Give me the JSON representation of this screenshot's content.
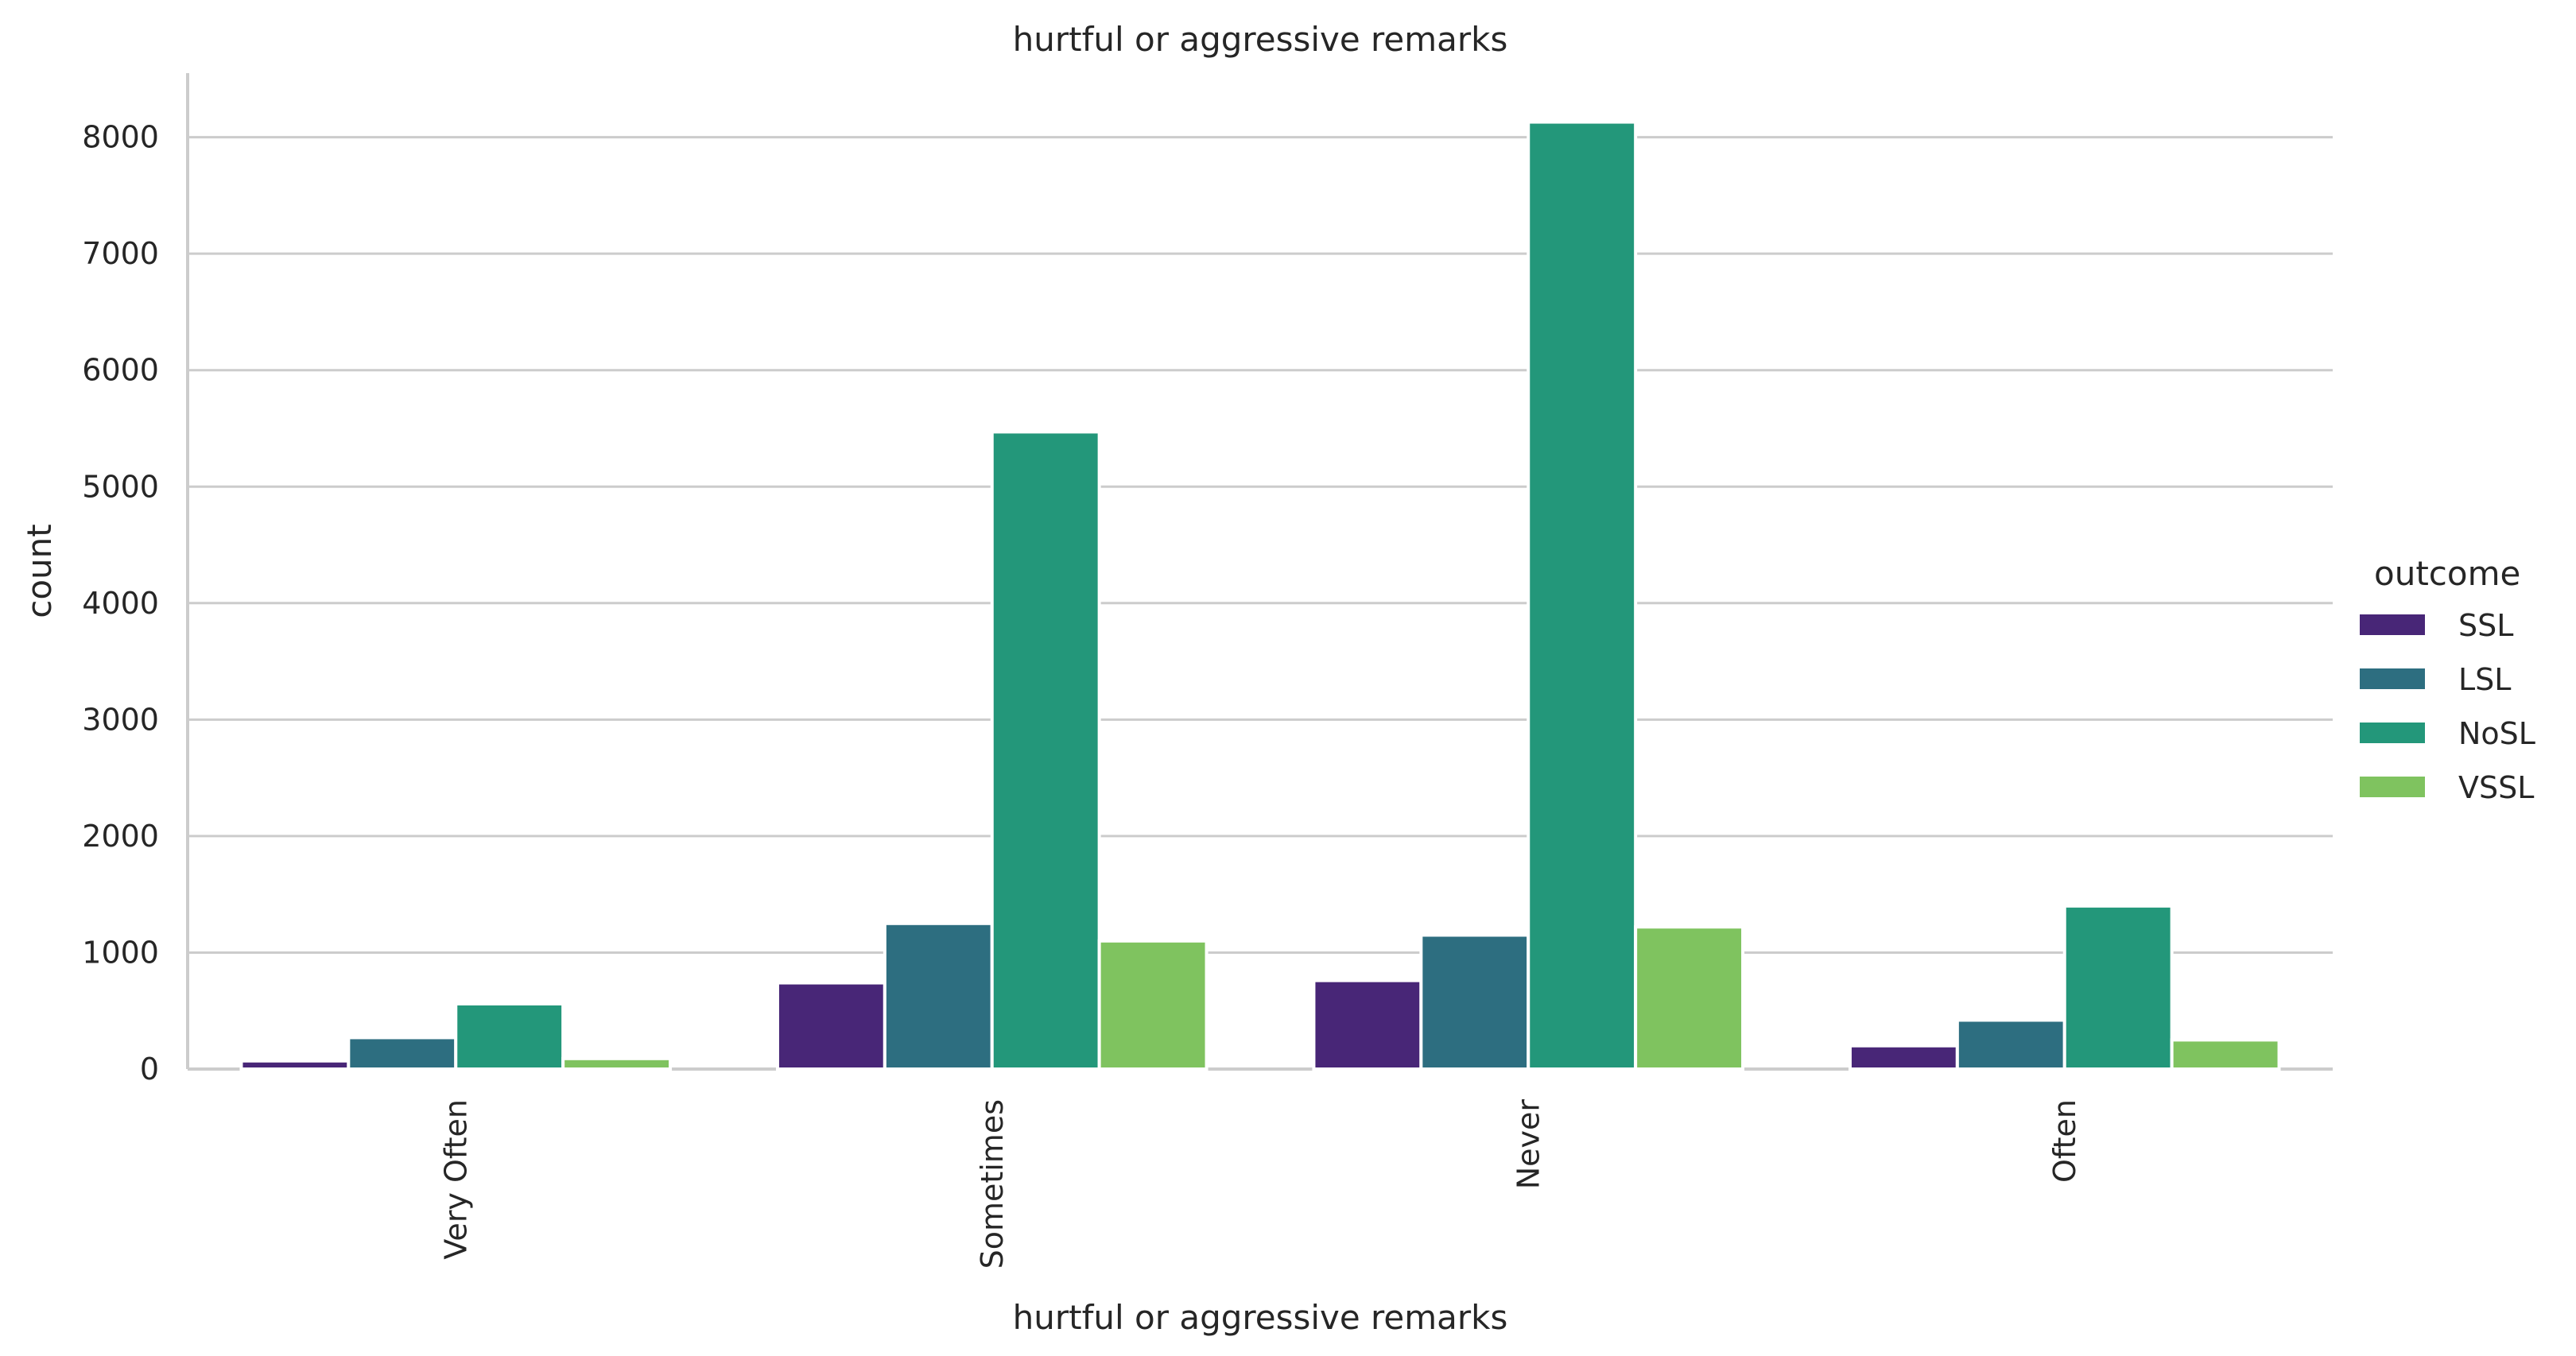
{
  "chart_data": {
    "type": "bar",
    "title": "hurtful or aggressive remarks",
    "xlabel": "hurtful or aggressive remarks",
    "ylabel": "count",
    "categories": [
      "Very Often",
      "Sometimes",
      "Never",
      "Often"
    ],
    "series": [
      {
        "name": "SSL",
        "color": "#482677",
        "values": [
          70,
          740,
          760,
          200
        ]
      },
      {
        "name": "LSL",
        "color": "#2d6e80",
        "values": [
          270,
          1250,
          1150,
          420
        ]
      },
      {
        "name": "NoSL",
        "color": "#23977a",
        "values": [
          560,
          5470,
          8130,
          1400
        ]
      },
      {
        "name": "VSSL",
        "color": "#7fc35f",
        "values": [
          90,
          1100,
          1220,
          250
        ]
      }
    ],
    "ylim": [
      0,
      8550
    ],
    "yticks": [
      0,
      1000,
      2000,
      3000,
      4000,
      5000,
      6000,
      7000,
      8000
    ],
    "grid": true,
    "legend": {
      "title": "outcome",
      "placement": "right"
    },
    "colors": {
      "grid": "#cccccc",
      "axis": "#cccccc",
      "text": "#262626",
      "bar_edge": "#ffffff"
    }
  }
}
